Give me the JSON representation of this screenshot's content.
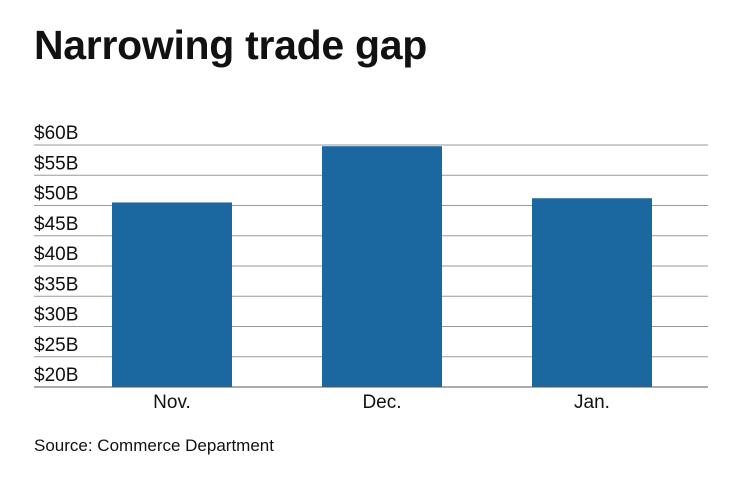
{
  "chart_data": {
    "type": "bar",
    "title": "Narrowing trade gap",
    "source": "Source: Commerce Department",
    "categories": [
      "Nov.",
      "Dec.",
      "Jan."
    ],
    "values": [
      50.5,
      59.8,
      51.2
    ],
    "ylim": [
      20,
      60
    ],
    "yticks": [
      {
        "value": 60,
        "label": "$60B"
      },
      {
        "value": 55,
        "label": "$55B"
      },
      {
        "value": 50,
        "label": "$50B"
      },
      {
        "value": 45,
        "label": "$45B"
      },
      {
        "value": 40,
        "label": "$40B"
      },
      {
        "value": 35,
        "label": "$35B"
      },
      {
        "value": 30,
        "label": "$30B"
      },
      {
        "value": 25,
        "label": "$25B"
      },
      {
        "value": 20,
        "label": "$20B"
      }
    ],
    "xlabel": "",
    "ylabel": "",
    "grid": true,
    "bar_color": "#1b67a0"
  }
}
